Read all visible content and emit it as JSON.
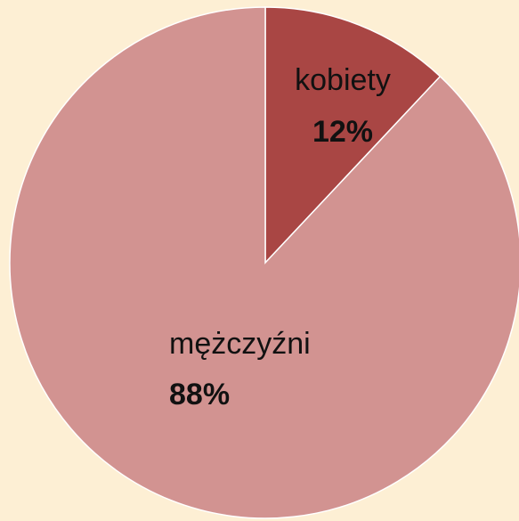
{
  "chart_data": {
    "type": "pie",
    "categories": [
      "kobiety",
      "mężczyźni"
    ],
    "values": [
      12,
      88
    ],
    "value_labels": [
      "12%",
      "88%"
    ],
    "colors": [
      "#a94644",
      "#d29391"
    ]
  }
}
